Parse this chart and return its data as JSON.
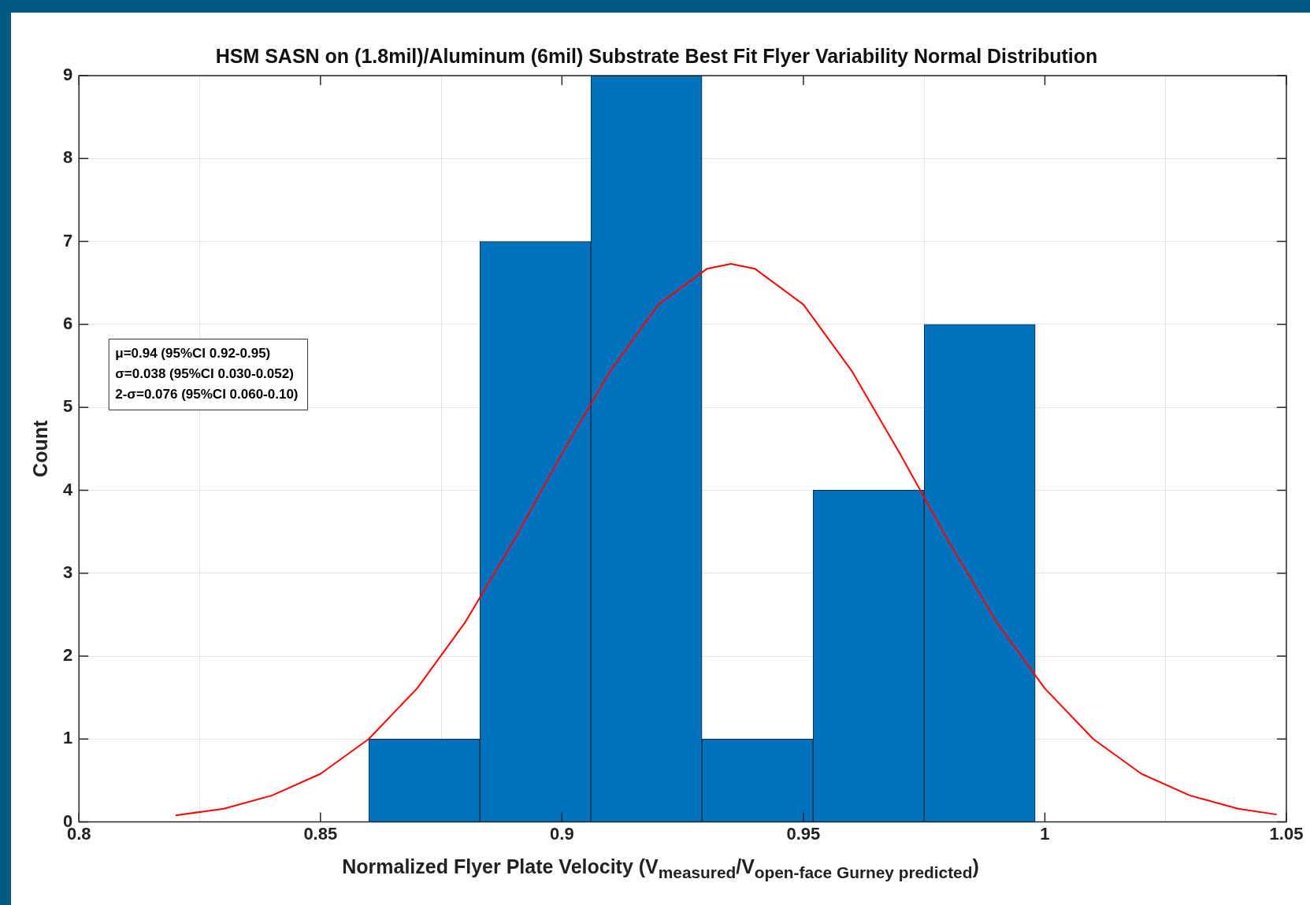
{
  "chart_data": {
    "type": "histogram",
    "title": "HSM SASN on (1.8mil)/Aluminum (6mil) Substrate Best Fit Flyer Variability Normal Distribution",
    "xlabel": "Normalized Flyer Plate Velocity (V$_{measured}$/V$_{open-face Gurney predicted}$)",
    "ylabel": "Count",
    "bins": [
      0.86,
      0.883,
      0.906,
      0.929,
      0.952,
      0.975,
      0.998
    ],
    "values": [
      1,
      7,
      9,
      1,
      4,
      6
    ],
    "color": "#0072bd",
    "series": [
      {
        "type": "line",
        "color": "#ff0000",
        "x": [
          0.82,
          0.83,
          0.84,
          0.85,
          0.86,
          0.87,
          0.88,
          0.89,
          0.9,
          0.91,
          0.92,
          0.93,
          0.935,
          0.94,
          0.95,
          0.96,
          0.97,
          0.98,
          0.99,
          1.0,
          1.01,
          1.02,
          1.03,
          1.04,
          1.048
        ],
        "values": [
          0.08,
          0.16,
          0.32,
          0.58,
          1.0,
          1.61,
          2.41,
          3.39,
          4.44,
          5.44,
          6.24,
          6.67,
          6.73,
          6.67,
          6.24,
          5.44,
          4.44,
          3.39,
          2.41,
          1.61,
          1.0,
          0.58,
          0.32,
          0.16,
          0.09
        ]
      }
    ],
    "xlim": [
      0.8,
      1.05
    ],
    "xticks": [
      0.8,
      0.85,
      0.9,
      0.95,
      1,
      1.05
    ],
    "ylim": [
      0,
      9
    ],
    "yticks": [
      0,
      1,
      2,
      3,
      4,
      5,
      6,
      7,
      8,
      9
    ],
    "grid": true,
    "annotations": [
      "μ=0.94 (95%CI 0.92-0.95)",
      "σ=0.038 (95%CI 0.030-0.052)",
      "2-σ=0.076 (95%CI 0.060-0.10)"
    ]
  }
}
